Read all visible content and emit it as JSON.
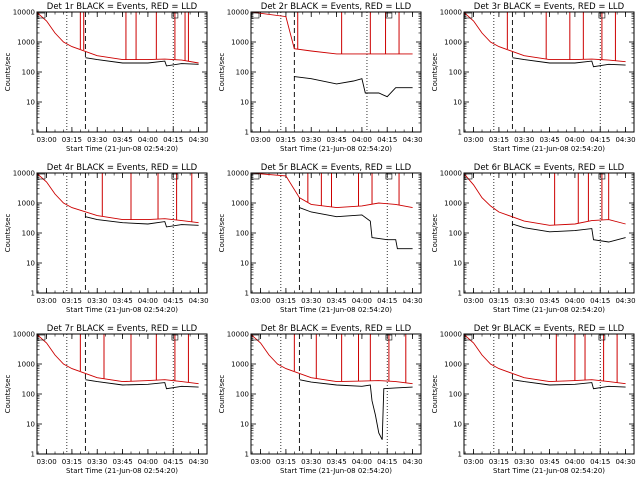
{
  "chart_data": [
    {
      "type": "line",
      "title": "Det 1r BLACK = Events, RED = LLD",
      "xlabel": "Start Time (21-Jun-08 02:54:20)",
      "ylabel": "Counts/sec",
      "yscale": "log",
      "ylim": [
        1,
        10000
      ],
      "xlim": [
        "02:54:20",
        "04:35:00"
      ],
      "yticks": [
        "1",
        "10",
        "100",
        "1000",
        "10000"
      ],
      "xticks": [
        "03:00",
        "03:15",
        "03:30",
        "03:45",
        "04:00",
        "04:15",
        "04:30"
      ],
      "markers": {
        "dotted": [
          "03:12",
          "04:15"
        ],
        "dashed": "03:23"
      },
      "series": [
        {
          "name": "Events",
          "color": "#000000",
          "x": [
            "03:23",
            "03:30",
            "03:45",
            "04:00",
            "04:10",
            "04:11",
            "04:20",
            "04:30"
          ],
          "y": [
            300,
            260,
            200,
            200,
            230,
            160,
            190,
            180
          ]
        },
        {
          "name": "LLD",
          "color": "#cc0000",
          "x": [
            "02:54",
            "03:00",
            "03:05",
            "03:10",
            "03:15",
            "03:30",
            "03:45",
            "04:00",
            "04:10",
            "04:20",
            "04:30"
          ],
          "y": [
            10000,
            5000,
            2000,
            1000,
            700,
            350,
            260,
            260,
            270,
            250,
            200
          ],
          "spikes": [
            [
              "03:20",
              10000
            ],
            [
              "03:22",
              10000
            ],
            [
              "03:47",
              10000
            ],
            [
              "03:53",
              10000
            ],
            [
              "04:05",
              10000
            ],
            [
              "04:16",
              10000
            ],
            [
              "04:22",
              10000
            ],
            [
              "04:24",
              10000
            ]
          ]
        }
      ]
    },
    {
      "type": "line",
      "title": "Det 2r BLACK = Events, RED = LLD",
      "xlabel": "Start Time (21-Jun-08 02:54:20)",
      "ylabel": "Counts/sec",
      "yscale": "log",
      "ylim": [
        1,
        10000
      ],
      "xlim": [
        "02:54:20",
        "04:35:00"
      ],
      "yticks": [
        "1",
        "10",
        "100",
        "1000",
        "10000"
      ],
      "xticks": [
        "03:00",
        "03:15",
        "03:30",
        "03:45",
        "04:00",
        "04:15",
        "04:30"
      ],
      "markers": {
        "dotted": [
          "03:12",
          "04:03"
        ],
        "dashed": "03:20"
      },
      "series": [
        {
          "name": "Events",
          "color": "#000000",
          "x": [
            "03:20",
            "03:30",
            "03:45",
            "03:55",
            "04:00",
            "04:02",
            "04:10",
            "04:15",
            "04:20",
            "04:30"
          ],
          "y": [
            70,
            60,
            40,
            50,
            60,
            20,
            20,
            15,
            30,
            30
          ]
        },
        {
          "name": "LLD",
          "color": "#cc0000",
          "x": [
            "02:54",
            "03:15",
            "03:20",
            "03:30",
            "03:45",
            "04:00",
            "04:15",
            "04:30"
          ],
          "y": [
            10000,
            7000,
            600,
            500,
            400,
            400,
            400,
            400
          ],
          "spikes": [
            [
              "03:22",
              10000
            ],
            [
              "03:48",
              10000
            ],
            [
              "04:05",
              10000
            ],
            [
              "04:14",
              10000
            ],
            [
              "04:22",
              10000
            ]
          ]
        }
      ]
    },
    {
      "type": "line",
      "title": "Det 3r BLACK = Events, RED = LLD",
      "xlabel": "Start Time (21-Jun-08 02:54:20)",
      "ylabel": "Counts/sec",
      "yscale": "log",
      "ylim": [
        1,
        10000
      ],
      "xlim": [
        "02:54:20",
        "04:35:00"
      ],
      "yticks": [
        "1",
        "10",
        "100",
        "1000",
        "10000"
      ],
      "xticks": [
        "03:00",
        "03:15",
        "03:30",
        "03:45",
        "04:00",
        "04:15",
        "04:30"
      ],
      "markers": {
        "dotted": [
          "03:12",
          "04:15"
        ],
        "dashed": "03:23"
      },
      "series": [
        {
          "name": "Events",
          "color": "#000000",
          "x": [
            "03:23",
            "03:30",
            "03:45",
            "04:00",
            "04:10",
            "04:11",
            "04:20",
            "04:30"
          ],
          "y": [
            300,
            260,
            200,
            200,
            230,
            150,
            180,
            170
          ]
        },
        {
          "name": "LLD",
          "color": "#cc0000",
          "x": [
            "02:54",
            "03:00",
            "03:05",
            "03:10",
            "03:15",
            "03:30",
            "03:45",
            "04:00",
            "04:10",
            "04:20",
            "04:30"
          ],
          "y": [
            10000,
            5000,
            2000,
            1000,
            700,
            350,
            260,
            260,
            270,
            250,
            220
          ],
          "spikes": [
            [
              "03:20",
              10000
            ],
            [
              "03:43",
              10000
            ],
            [
              "03:57",
              10000
            ],
            [
              "04:05",
              10000
            ],
            [
              "04:16",
              10000
            ],
            [
              "04:24",
              10000
            ]
          ]
        }
      ]
    },
    {
      "type": "line",
      "title": "Det 4r BLACK = Events, RED = LLD",
      "xlabel": "Start Time (21-Jun-08 02:54:20)",
      "ylabel": "Counts/sec",
      "yscale": "log",
      "ylim": [
        1,
        10000
      ],
      "xlim": [
        "02:54:20",
        "04:35:00"
      ],
      "yticks": [
        "1",
        "10",
        "100",
        "1000",
        "10000"
      ],
      "xticks": [
        "03:00",
        "03:15",
        "03:30",
        "03:45",
        "04:00",
        "04:15",
        "04:30"
      ],
      "markers": {
        "dotted": [
          "03:12",
          "04:15"
        ],
        "dashed": "03:23"
      },
      "series": [
        {
          "name": "Events",
          "color": "#000000",
          "x": [
            "03:23",
            "03:30",
            "03:45",
            "04:00",
            "04:10",
            "04:11",
            "04:20",
            "04:30"
          ],
          "y": [
            350,
            280,
            220,
            200,
            240,
            160,
            190,
            180
          ]
        },
        {
          "name": "LLD",
          "color": "#cc0000",
          "x": [
            "02:54",
            "03:00",
            "03:05",
            "03:10",
            "03:15",
            "03:30",
            "03:45",
            "04:00",
            "04:10",
            "04:20",
            "04:30"
          ],
          "y": [
            10000,
            5000,
            2000,
            1000,
            700,
            380,
            280,
            280,
            300,
            260,
            220
          ],
          "spikes": [
            [
              "03:33",
              10000
            ],
            [
              "03:50",
              10000
            ],
            [
              "04:06",
              10000
            ],
            [
              "04:17",
              10000
            ],
            [
              "04:26",
              10000
            ]
          ]
        }
      ]
    },
    {
      "type": "line",
      "title": "Det 5r BLACK = Events, RED = LLD",
      "xlabel": "Start Time (21-Jun-08 02:54:20)",
      "ylabel": "Counts/sec",
      "yscale": "log",
      "ylim": [
        1,
        10000
      ],
      "xlim": [
        "02:54:20",
        "04:35:00"
      ],
      "yticks": [
        "1",
        "10",
        "100",
        "1000",
        "10000"
      ],
      "xticks": [
        "03:00",
        "03:15",
        "03:30",
        "03:45",
        "04:00",
        "04:15",
        "04:30"
      ],
      "markers": {
        "dotted": [
          "03:12",
          "04:15"
        ],
        "dashed": "03:23"
      },
      "series": [
        {
          "name": "Events",
          "color": "#000000",
          "x": [
            "03:23",
            "03:30",
            "03:45",
            "04:00",
            "04:05",
            "04:06",
            "04:15",
            "04:20",
            "04:21",
            "04:30"
          ],
          "y": [
            700,
            500,
            350,
            400,
            250,
            70,
            60,
            60,
            30,
            30
          ]
        },
        {
          "name": "LLD",
          "color": "#cc0000",
          "x": [
            "02:54",
            "03:15",
            "03:23",
            "03:30",
            "03:45",
            "04:00",
            "04:10",
            "04:20",
            "04:30"
          ],
          "y": [
            10000,
            8000,
            1500,
            900,
            700,
            800,
            1000,
            900,
            700
          ],
          "spikes": [
            [
              "03:28",
              10000
            ],
            [
              "03:36",
              10000
            ],
            [
              "03:42",
              10000
            ],
            [
              "03:58",
              10000
            ],
            [
              "04:06",
              10000
            ],
            [
              "04:22",
              10000
            ]
          ]
        }
      ]
    },
    {
      "type": "line",
      "title": "Det 6r BLACK = Events, RED = LLD",
      "xlabel": "Start Time (21-Jun-08 02:54:20)",
      "ylabel": "Counts/sec",
      "yscale": "log",
      "ylim": [
        1,
        10000
      ],
      "xlim": [
        "02:54:20",
        "04:35:00"
      ],
      "yticks": [
        "1",
        "10",
        "100",
        "1000",
        "10000"
      ],
      "xticks": [
        "03:00",
        "03:15",
        "03:30",
        "03:45",
        "04:00",
        "04:15",
        "04:30"
      ],
      "markers": {
        "dotted": [
          "03:12",
          "04:15"
        ],
        "dashed": "03:23"
      },
      "series": [
        {
          "name": "Events",
          "color": "#000000",
          "x": [
            "03:23",
            "03:30",
            "03:45",
            "04:00",
            "04:10",
            "04:11",
            "04:20",
            "04:30"
          ],
          "y": [
            200,
            150,
            110,
            120,
            140,
            60,
            50,
            70
          ]
        },
        {
          "name": "LLD",
          "color": "#cc0000",
          "x": [
            "02:54",
            "03:00",
            "03:05",
            "03:10",
            "03:15",
            "03:30",
            "03:45",
            "04:00",
            "04:10",
            "04:20",
            "04:30"
          ],
          "y": [
            10000,
            4000,
            1500,
            800,
            500,
            250,
            180,
            200,
            260,
            280,
            200
          ],
          "spikes": [
            [
              "03:48",
              10000
            ],
            [
              "04:02",
              10000
            ],
            [
              "04:08",
              10000
            ],
            [
              "04:16",
              10000
            ],
            [
              "04:20",
              10000
            ]
          ]
        }
      ]
    },
    {
      "type": "line",
      "title": "Det 7r BLACK = Events, RED = LLD",
      "xlabel": "Start Time (21-Jun-08 02:54:20)",
      "ylabel": "Counts/sec",
      "yscale": "log",
      "ylim": [
        1,
        10000
      ],
      "xlim": [
        "02:54:20",
        "04:35:00"
      ],
      "yticks": [
        "1",
        "10",
        "100",
        "1000",
        "10000"
      ],
      "xticks": [
        "03:00",
        "03:15",
        "03:30",
        "03:45",
        "04:00",
        "04:15",
        "04:30"
      ],
      "markers": {
        "dotted": [
          "03:12",
          "04:15"
        ],
        "dashed": "03:23"
      },
      "series": [
        {
          "name": "Events",
          "color": "#000000",
          "x": [
            "03:23",
            "03:30",
            "03:45",
            "04:00",
            "04:10",
            "04:11",
            "04:20",
            "04:30"
          ],
          "y": [
            300,
            260,
            200,
            210,
            240,
            150,
            180,
            170
          ]
        },
        {
          "name": "LLD",
          "color": "#cc0000",
          "x": [
            "02:54",
            "03:00",
            "03:05",
            "03:10",
            "03:15",
            "03:30",
            "03:45",
            "04:00",
            "04:10",
            "04:20",
            "04:30"
          ],
          "y": [
            10000,
            5000,
            2000,
            1000,
            700,
            350,
            260,
            280,
            300,
            260,
            220
          ],
          "spikes": [
            [
              "03:20",
              10000
            ],
            [
              "03:34",
              10000
            ],
            [
              "03:50",
              10000
            ],
            [
              "04:05",
              10000
            ],
            [
              "04:16",
              10000
            ],
            [
              "04:24",
              10000
            ]
          ]
        }
      ]
    },
    {
      "type": "line",
      "title": "Det 8r BLACK = Events, RED = LLD",
      "xlabel": "Start Time (21-Jun-08 02:54:20)",
      "ylabel": "Counts/sec",
      "yscale": "log",
      "ylim": [
        1,
        10000
      ],
      "xlim": [
        "02:54:20",
        "04:35:00"
      ],
      "yticks": [
        "1",
        "10",
        "100",
        "1000",
        "10000"
      ],
      "xticks": [
        "03:00",
        "03:15",
        "03:30",
        "03:45",
        "04:00",
        "04:15",
        "04:30"
      ],
      "markers": {
        "dotted": [
          "03:12",
          "04:15"
        ],
        "dashed": "03:23"
      },
      "series": [
        {
          "name": "Events",
          "color": "#000000",
          "x": [
            "03:23",
            "03:30",
            "03:45",
            "04:00",
            "04:05",
            "04:06",
            "04:08",
            "04:10",
            "04:12",
            "04:13",
            "04:20",
            "04:30"
          ],
          "y": [
            300,
            250,
            200,
            180,
            200,
            60,
            20,
            5,
            3,
            150,
            160,
            170
          ]
        },
        {
          "name": "LLD",
          "color": "#cc0000",
          "x": [
            "02:54",
            "03:00",
            "03:05",
            "03:10",
            "03:15",
            "03:30",
            "03:45",
            "04:00",
            "04:10",
            "04:20",
            "04:30"
          ],
          "y": [
            10000,
            5000,
            2000,
            1000,
            700,
            350,
            260,
            270,
            280,
            260,
            220
          ],
          "spikes": [
            [
              "03:20",
              10000
            ],
            [
              "03:33",
              10000
            ],
            [
              "03:48",
              10000
            ],
            [
              "03:58",
              10000
            ],
            [
              "04:05",
              10000
            ],
            [
              "04:16",
              10000
            ],
            [
              "04:26",
              10000
            ]
          ]
        }
      ]
    },
    {
      "type": "line",
      "title": "Det 9r BLACK = Events, RED = LLD",
      "xlabel": "Start Time (21-Jun-08 02:54:20)",
      "ylabel": "Counts/sec",
      "yscale": "log",
      "ylim": [
        1,
        10000
      ],
      "xlim": [
        "02:54:20",
        "04:35:00"
      ],
      "yticks": [
        "1",
        "10",
        "100",
        "1000",
        "10000"
      ],
      "xticks": [
        "03:00",
        "03:15",
        "03:30",
        "03:45",
        "04:00",
        "04:15",
        "04:30"
      ],
      "markers": {
        "dotted": [
          "03:12",
          "04:15"
        ],
        "dashed": "03:23"
      },
      "series": [
        {
          "name": "Events",
          "color": "#000000",
          "x": [
            "03:23",
            "03:30",
            "03:45",
            "04:00",
            "04:10",
            "04:11",
            "04:20",
            "04:30"
          ],
          "y": [
            300,
            260,
            200,
            210,
            240,
            150,
            180,
            170
          ]
        },
        {
          "name": "LLD",
          "color": "#cc0000",
          "x": [
            "02:54",
            "03:00",
            "03:05",
            "03:10",
            "03:15",
            "03:30",
            "03:45",
            "04:00",
            "04:10",
            "04:20",
            "04:30"
          ],
          "y": [
            10000,
            5000,
            2000,
            1000,
            700,
            350,
            260,
            280,
            300,
            260,
            220
          ],
          "spikes": [
            [
              "03:49",
              10000
            ],
            [
              "04:00",
              10000
            ],
            [
              "04:06",
              10000
            ],
            [
              "04:17",
              10000
            ],
            [
              "04:25",
              10000
            ]
          ]
        }
      ]
    }
  ]
}
